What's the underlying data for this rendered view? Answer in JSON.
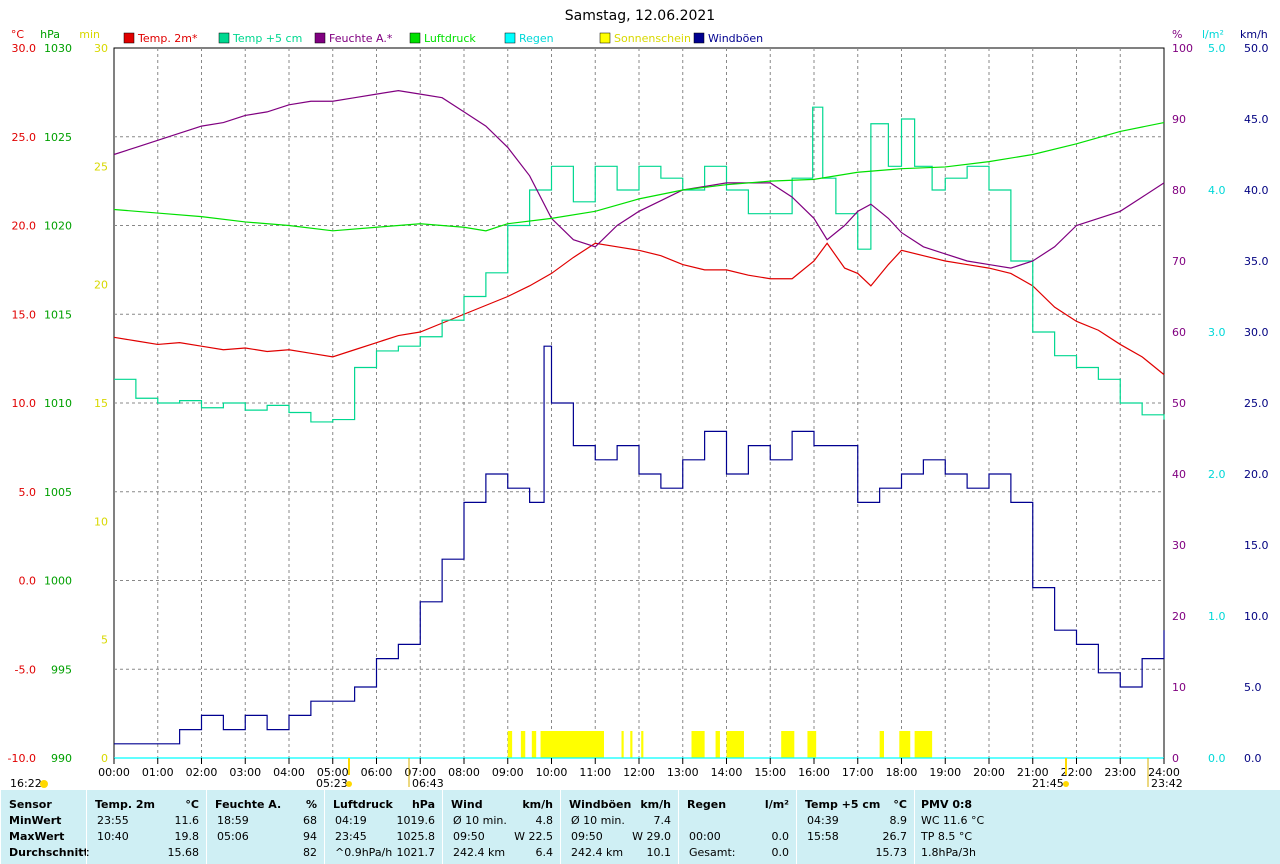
{
  "title": "Samstag, 12.06.2021",
  "legend": [
    {
      "label": "Temp. 2m*",
      "color": "#e00000"
    },
    {
      "label": "Temp +5 cm",
      "color": "#00d890"
    },
    {
      "label": "Feuchte A.*",
      "color": "#800080"
    },
    {
      "label": "Luftdruck",
      "color": "#00e000"
    },
    {
      "label": "Regen",
      "color": "#00ffff"
    },
    {
      "label": "Sonnenschein",
      "color": "#ffff00"
    },
    {
      "label": "Windböen",
      "color": "#000090"
    }
  ],
  "axes": {
    "temp": {
      "unit": "°C",
      "color": "#e00000",
      "ticks": [
        "30.0",
        "25.0",
        "20.0",
        "15.0",
        "10.0",
        "5.0",
        "0.0",
        "-5.0",
        "-10.0"
      ]
    },
    "pressure": {
      "unit": "hPa",
      "color": "#00a000",
      "ticks": [
        "1030",
        "1025",
        "1020",
        "1015",
        "1010",
        "1005",
        "1000",
        "995",
        "990"
      ]
    },
    "sun_min": {
      "unit": "min",
      "color": "#d8d800",
      "ticks": [
        "30",
        "25",
        "20",
        "15",
        "10",
        "5",
        "0"
      ]
    },
    "humidity": {
      "unit": "%",
      "color": "#800080",
      "ticks": [
        "100",
        "90",
        "80",
        "70",
        "60",
        "50",
        "40",
        "30",
        "20",
        "10",
        "0"
      ]
    },
    "rain": {
      "unit": "l/m²",
      "color": "#00d8d8",
      "ticks": [
        "5.0",
        "4.0",
        "3.0",
        "2.0",
        "1.0",
        "0.0"
      ]
    },
    "wind": {
      "unit": "km/h",
      "color": "#000080",
      "ticks": [
        "50.0",
        "45.0",
        "40.0",
        "35.0",
        "30.0",
        "25.0",
        "20.0",
        "15.0",
        "10.0",
        "5.0",
        "0.0"
      ]
    }
  },
  "x_ticks": [
    "00:00",
    "01:00",
    "02:00",
    "03:00",
    "04:00",
    "05:00",
    "06:00",
    "07:00",
    "08:00",
    "09:00",
    "10:00",
    "11:00",
    "12:00",
    "13:00",
    "14:00",
    "15:00",
    "16:00",
    "17:00",
    "18:00",
    "19:00",
    "20:00",
    "21:00",
    "22:00",
    "23:00",
    "24:00"
  ],
  "markers": {
    "current_time": "16:22",
    "sunrise": "05:23",
    "sun_up_mark": "06:43",
    "sunset": "21:45",
    "sun_down_mark": "23:42"
  },
  "footer": {
    "sensor": {
      "header": "Sensor",
      "rows": [
        "MinWert",
        "MaxWert",
        "Durchschnitt"
      ]
    },
    "temp2m": {
      "header": "Temp. 2m",
      "unit": "°C",
      "rows": [
        [
          "23:55",
          "11.6"
        ],
        [
          "10:40",
          "19.8"
        ],
        [
          "",
          "15.68"
        ]
      ]
    },
    "humidity": {
      "header": "Feuchte A.",
      "unit": "%",
      "rows": [
        [
          "18:59",
          "68"
        ],
        [
          "05:06",
          "94"
        ],
        [
          "",
          "82"
        ]
      ]
    },
    "pressure": {
      "header": "Luftdruck",
      "unit": "hPa",
      "rows": [
        [
          "04:19",
          "1019.6"
        ],
        [
          "23:45",
          "1025.8"
        ],
        [
          "^0.9hPa/h",
          "1021.7"
        ]
      ]
    },
    "wind": {
      "header": "Wind",
      "unit": "km/h",
      "rows": [
        [
          "Ø 10 min.",
          "4.8"
        ],
        [
          "09:50",
          "W 22.5"
        ],
        [
          "242.4 km",
          "6.4"
        ]
      ]
    },
    "gusts": {
      "header": "Windböen",
      "unit": "km/h",
      "rows": [
        [
          "Ø 10 min.",
          "7.4"
        ],
        [
          "09:50",
          "W 29.0"
        ],
        [
          "242.4 km",
          "10.1"
        ]
      ]
    },
    "rain": {
      "header": "Regen",
      "unit": "l/m²",
      "rows": [
        [
          "",
          ""
        ],
        [
          "00:00",
          "0.0"
        ],
        [
          "Gesamt:",
          "0.0"
        ]
      ]
    },
    "temp5": {
      "header": "Temp +5 cm",
      "unit": "°C",
      "rows": [
        [
          "04:39",
          "8.9"
        ],
        [
          "15:58",
          "26.7"
        ],
        [
          "",
          "15.73"
        ]
      ]
    },
    "pmv": {
      "header": "PMV 0:8",
      "rows": [
        "WC 11.6 °C",
        "TP 8.5 °C",
        "1.8hPa/3h"
      ]
    }
  },
  "chart_data": {
    "type": "line",
    "title": "Samstag, 12.06.2021",
    "x_unit": "hour",
    "x_range": [
      0,
      24
    ],
    "series": [
      {
        "name": "Temp. 2m*",
        "axis": "temp",
        "color": "#e00000",
        "x": [
          0,
          0.5,
          1,
          1.5,
          2,
          2.5,
          3,
          3.5,
          4,
          4.5,
          5,
          5.5,
          6,
          6.5,
          7,
          7.5,
          8,
          8.5,
          9,
          9.5,
          10,
          10.5,
          11,
          11.5,
          12,
          12.5,
          13,
          13.5,
          14,
          14.5,
          15,
          15.5,
          16,
          16.3,
          16.7,
          17,
          17.3,
          17.7,
          18,
          18.5,
          19,
          19.5,
          20,
          20.5,
          21,
          21.5,
          22,
          22.5,
          23,
          23.5,
          24
        ],
        "y": [
          13.7,
          13.5,
          13.3,
          13.4,
          13.2,
          13.0,
          13.1,
          12.9,
          13.0,
          12.8,
          12.6,
          13.0,
          13.4,
          13.8,
          14.0,
          14.5,
          15.0,
          15.5,
          16.0,
          16.6,
          17.3,
          18.2,
          19.0,
          18.8,
          18.6,
          18.3,
          17.8,
          17.5,
          17.5,
          17.2,
          17.0,
          17.0,
          18.0,
          19.0,
          17.6,
          17.3,
          16.6,
          17.8,
          18.6,
          18.3,
          18.0,
          17.8,
          17.6,
          17.3,
          16.6,
          15.4,
          14.6,
          14.1,
          13.3,
          12.6,
          11.6
        ]
      },
      {
        "name": "Temp +5 cm",
        "axis": "sun_min",
        "color": "#00d890",
        "x": [
          0,
          0.5,
          1,
          1.5,
          2,
          2.5,
          3,
          3.5,
          4,
          4.5,
          5,
          5.5,
          6,
          6.5,
          7,
          7.5,
          8,
          8.5,
          9,
          9.5,
          10,
          10.5,
          11,
          11.5,
          12,
          12.5,
          13,
          13.5,
          14,
          14.5,
          15,
          15.5,
          15.97,
          16.2,
          16.5,
          17,
          17.3,
          17.7,
          18,
          18.3,
          18.7,
          19,
          19.5,
          20,
          20.5,
          21,
          21.5,
          22,
          22.5,
          23,
          23.5,
          24
        ],
        "y": [
          16,
          15.2,
          15,
          15.1,
          14.8,
          15,
          14.7,
          14.9,
          14.6,
          14.2,
          14.3,
          16.5,
          17.2,
          17.4,
          17.8,
          18.5,
          19.5,
          20.5,
          22.5,
          24,
          25,
          23.5,
          25,
          24,
          25,
          24.5,
          24,
          25,
          24,
          23,
          23,
          24.5,
          27.5,
          24.5,
          23,
          21.5,
          26.8,
          25,
          27,
          25,
          24,
          24.5,
          25,
          24,
          21,
          18,
          17,
          16.5,
          16,
          15,
          14.5,
          14.3
        ]
      },
      {
        "name": "Feuchte A.*",
        "axis": "humidity",
        "color": "#800080",
        "x": [
          0,
          0.5,
          1,
          1.5,
          2,
          2.5,
          3,
          3.5,
          4,
          4.5,
          5,
          5.5,
          6,
          6.5,
          7,
          7.5,
          8,
          8.5,
          9,
          9.5,
          10,
          10.5,
          11,
          11.5,
          12,
          12.5,
          13,
          13.5,
          14,
          14.5,
          15,
          15.5,
          16,
          16.3,
          16.7,
          17,
          17.3,
          17.7,
          18,
          18.5,
          19,
          19.5,
          20,
          20.5,
          21,
          21.5,
          22,
          22.5,
          23,
          23.5,
          24
        ],
        "y": [
          85,
          86,
          87,
          88,
          89,
          89.5,
          90.5,
          91,
          92,
          92.5,
          92.5,
          93,
          93.5,
          94,
          93.5,
          93,
          91,
          89,
          86,
          82,
          76,
          73,
          72,
          75,
          77,
          78.5,
          80,
          80.5,
          81,
          81,
          81,
          79,
          76,
          73,
          75,
          77,
          78,
          76,
          74,
          72,
          71,
          70,
          69.5,
          69,
          70,
          72,
          75,
          76,
          77,
          79,
          81
        ]
      },
      {
        "name": "Luftdruck",
        "axis": "pressure",
        "color": "#00e000",
        "x": [
          0,
          1,
          2,
          3,
          4,
          5,
          6,
          7,
          8,
          8.5,
          9,
          10,
          11,
          12,
          13,
          14,
          15,
          16,
          17,
          18,
          19,
          20,
          21,
          22,
          23,
          24
        ],
        "y": [
          1020.9,
          1020.7,
          1020.5,
          1020.2,
          1020.0,
          1019.7,
          1019.9,
          1020.1,
          1019.9,
          1019.7,
          1020.1,
          1020.4,
          1020.8,
          1021.5,
          1022.0,
          1022.3,
          1022.5,
          1022.6,
          1023.0,
          1023.2,
          1023.3,
          1023.6,
          1024.0,
          1024.6,
          1025.3,
          1025.8
        ]
      },
      {
        "name": "Regen",
        "axis": "rain",
        "color": "#00ffff",
        "x": [
          0,
          24
        ],
        "y": [
          0,
          0
        ]
      },
      {
        "name": "Windböen",
        "axis": "wind",
        "color": "#000090",
        "x": [
          0,
          0.5,
          1,
          1.5,
          2,
          2.5,
          3,
          3.5,
          4,
          4.5,
          5,
          5.5,
          6,
          6.5,
          7,
          7.5,
          8,
          8.5,
          9,
          9.5,
          9.83,
          10,
          10.5,
          11,
          11.5,
          12,
          12.5,
          13,
          13.5,
          14,
          14.5,
          15,
          15.5,
          16,
          16.5,
          17,
          17.5,
          18,
          18.5,
          19,
          19.5,
          20,
          20.5,
          21,
          21.5,
          22,
          22.5,
          23,
          23.5,
          24
        ],
        "y": [
          1,
          1,
          1,
          2,
          3,
          2,
          3,
          2,
          3,
          4,
          4,
          5,
          7,
          8,
          11,
          14,
          18,
          20,
          19,
          18,
          29,
          25,
          22,
          21,
          22,
          20,
          19,
          21,
          23,
          20,
          22,
          21,
          23,
          22,
          22,
          18,
          19,
          20,
          21,
          20,
          19,
          20,
          18,
          12,
          9,
          8,
          6,
          5,
          7,
          9
        ]
      }
    ],
    "sunshine_intervals": [
      [
        9.0,
        9.1
      ],
      [
        9.3,
        9.4
      ],
      [
        9.55,
        9.65
      ],
      [
        9.75,
        11.2
      ],
      [
        11.6,
        11.65
      ],
      [
        11.8,
        11.85
      ],
      [
        12.05,
        12.1
      ],
      [
        13.2,
        13.5
      ],
      [
        13.75,
        13.85
      ],
      [
        14.0,
        14.4
      ],
      [
        15.25,
        15.55
      ],
      [
        15.85,
        16.05
      ],
      [
        17.5,
        17.6
      ],
      [
        17.95,
        18.2
      ],
      [
        18.3,
        18.7
      ]
    ],
    "ylim": {
      "temp": [
        -10,
        30
      ],
      "pressure": [
        990,
        1030
      ],
      "sun_min": [
        0,
        30
      ],
      "humidity": [
        0,
        100
      ],
      "rain": [
        0,
        5
      ],
      "wind": [
        0,
        50
      ]
    },
    "grid": true
  }
}
